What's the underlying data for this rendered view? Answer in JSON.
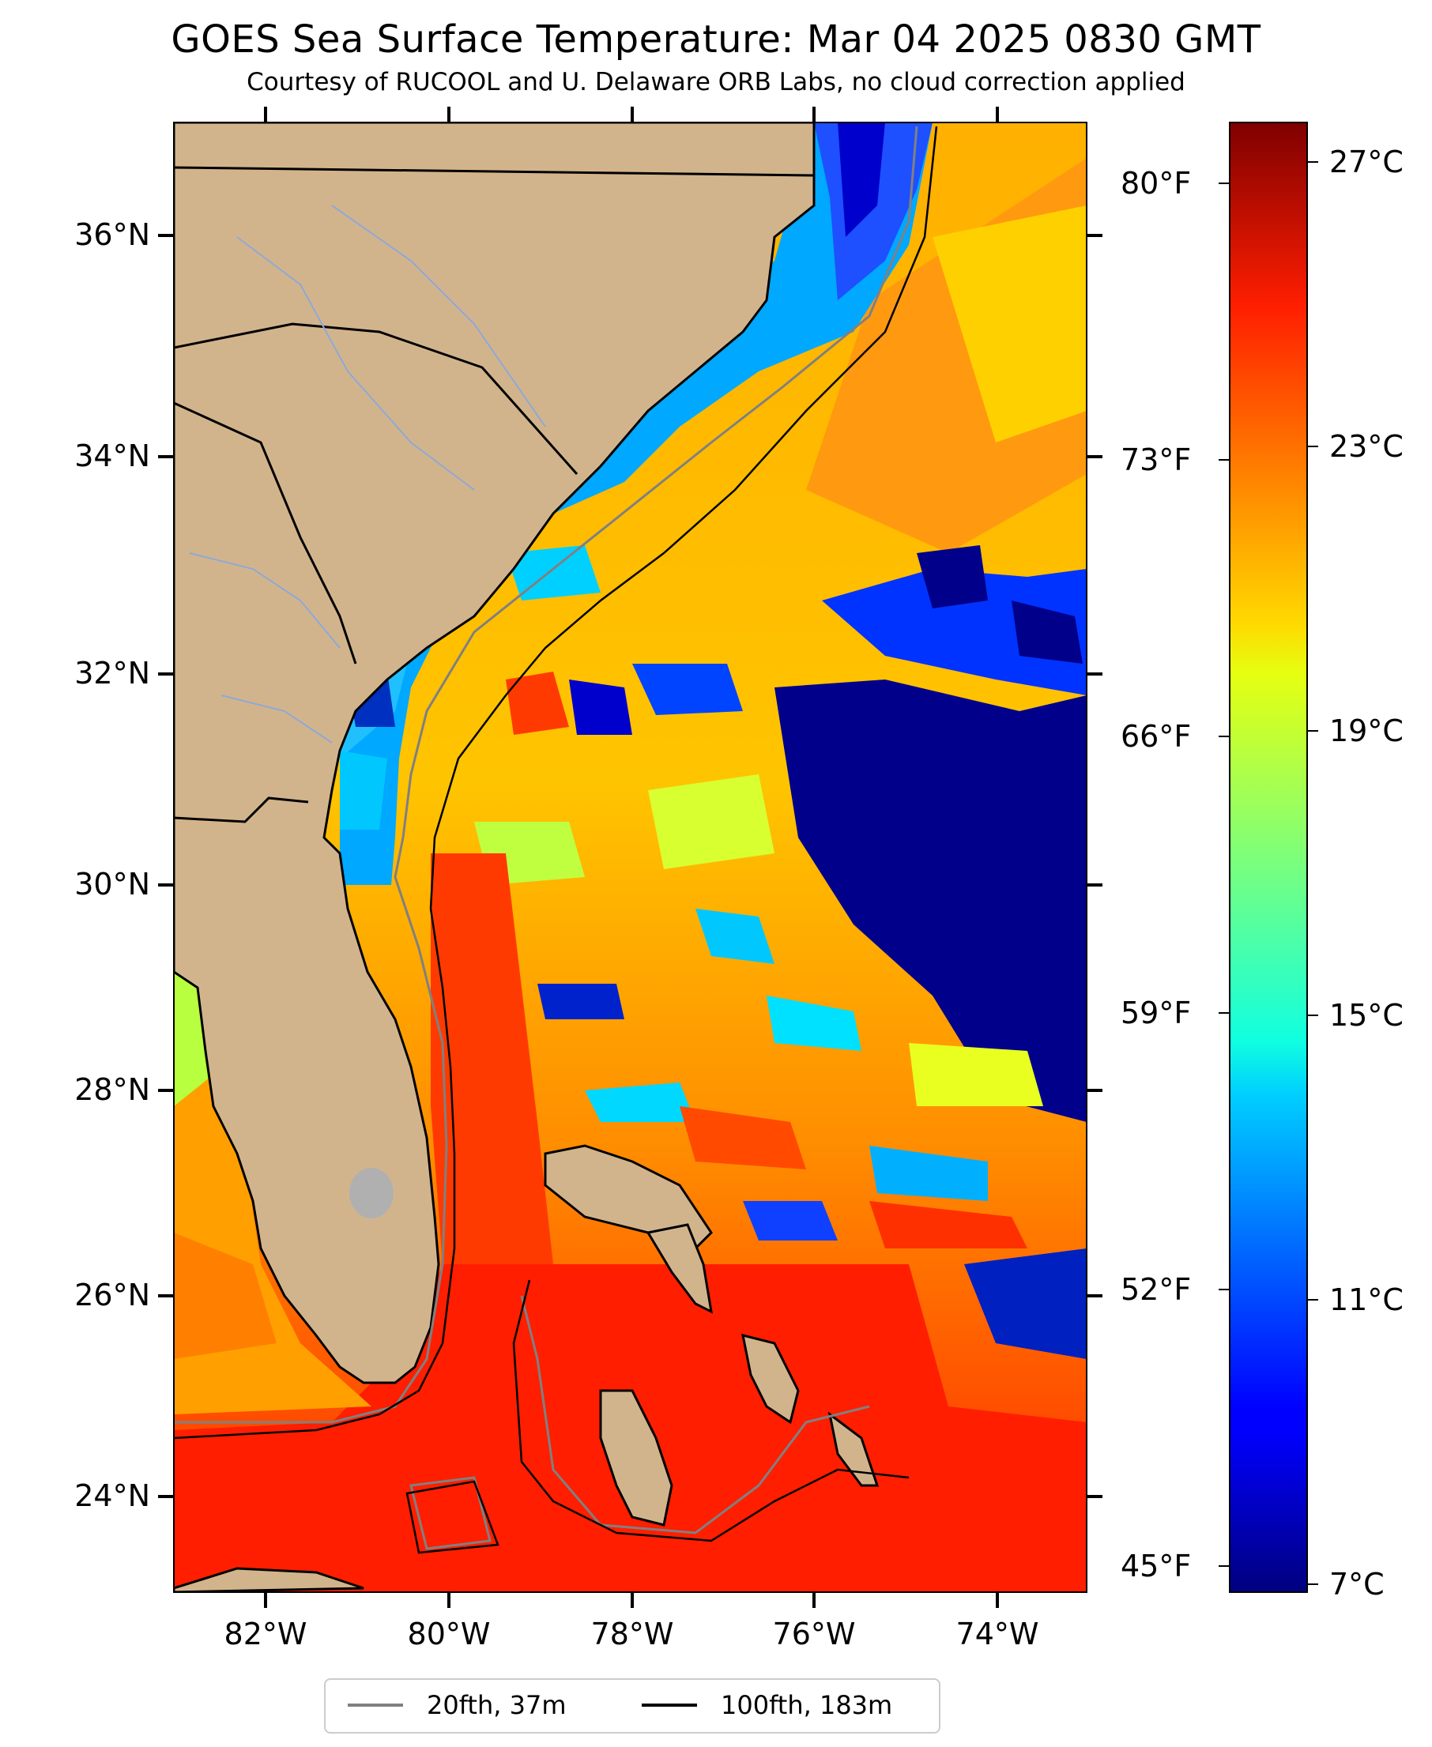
{
  "title": "GOES Sea Surface Temperature: Mar 04 2025 0830 GMT",
  "subtitle": "Courtesy of RUCOOL and U. Delaware ORB Labs, no cloud correction applied",
  "latitude_labels": [
    "36°N",
    "34°N",
    "32°N",
    "30°N",
    "28°N",
    "26°N",
    "24°N"
  ],
  "longitude_labels": [
    "82°W",
    "80°W",
    "78°W",
    "76°W",
    "74°W"
  ],
  "fahrenheit_labels": [
    "80°F",
    "73°F",
    "66°F",
    "59°F",
    "52°F",
    "45°F"
  ],
  "colorbar": {
    "celsius_labels": [
      "27°C",
      "23°C",
      "19°C",
      "15°C",
      "11°C",
      "7°C"
    ],
    "min_c": 7,
    "max_c": 27.5,
    "colormap": "jet"
  },
  "legend": [
    {
      "label": "20fth, 37m",
      "color": "#808080"
    },
    {
      "label": "100fth, 183m",
      "color": "#000000"
    }
  ],
  "colors": {
    "land": "#d2b48c",
    "shelf_cold": "#1f5cff",
    "deep_cold": "#00008b",
    "gulf_stream_warm": "#ff2a00",
    "isobath_20fth": "#808080",
    "isobath_100fth": "#000000"
  }
}
